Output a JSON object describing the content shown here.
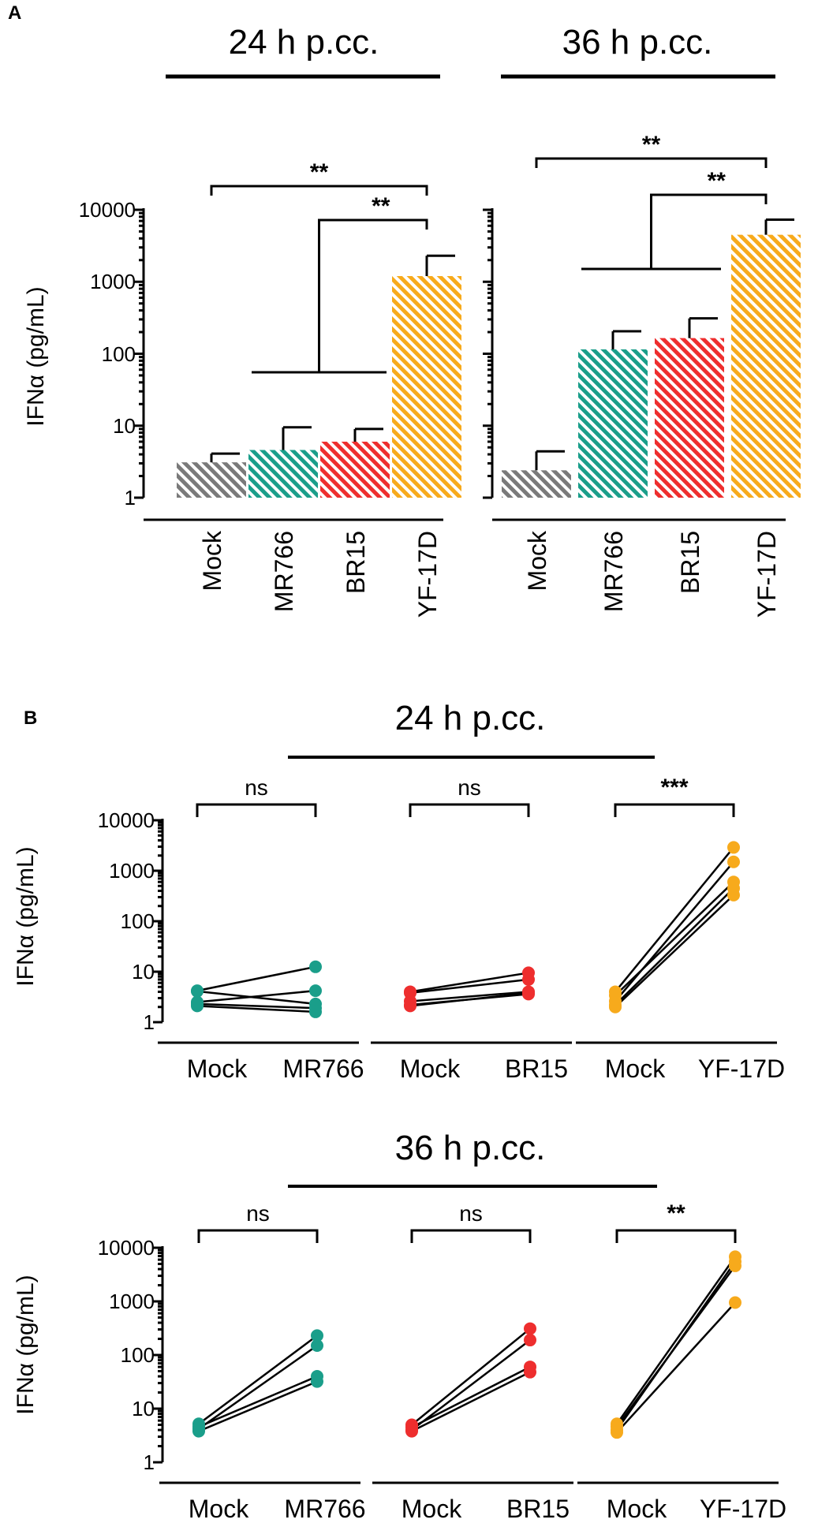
{
  "figure": {
    "panel_a_label": "A",
    "panel_b_label": "B",
    "y_axis_label": "IFNα (pg/mL)",
    "y_ticks": [
      "10000",
      "1000",
      "100",
      "10",
      "1"
    ]
  },
  "colors": {
    "Mock": "#7a7a7a",
    "MR766": "#1a9e8a",
    "BR15": "#ee2e2e",
    "YF-17D": "#f7aa1c"
  },
  "chart_data": [
    {
      "id": "A-24",
      "type": "bar",
      "scale": "log",
      "title": "24 h p.cc.",
      "ylabel": "IFNα (pg/mL)",
      "ylim": [
        1,
        10000
      ],
      "categories": [
        "Mock",
        "MR766",
        "BR15",
        "YF-17D"
      ],
      "values": [
        3.1,
        4.6,
        6.0,
        1200
      ],
      "error_upper": [
        4.1,
        9.5,
        9.0,
        2300
      ],
      "significance": [
        {
          "from": "Mock",
          "to": "YF-17D",
          "label": "**"
        },
        {
          "from": "MR766-BR15",
          "to": "YF-17D",
          "label": "**"
        }
      ]
    },
    {
      "id": "A-36",
      "type": "bar",
      "scale": "log",
      "title": "36 h p.cc.",
      "ylabel": "IFNα (pg/mL)",
      "ylim": [
        1,
        10000
      ],
      "categories": [
        "Mock",
        "MR766",
        "BR15",
        "YF-17D"
      ],
      "values": [
        2.4,
        115,
        165,
        4500
      ],
      "error_upper": [
        4.4,
        205,
        310,
        7300
      ],
      "significance": [
        {
          "from": "Mock",
          "to": "YF-17D",
          "label": "**"
        },
        {
          "from": "MR766-BR15",
          "to": "YF-17D",
          "label": "**"
        }
      ]
    },
    {
      "id": "B-24",
      "type": "scatter",
      "scale": "log",
      "title": "24 h p.cc.",
      "ylabel": "IFNα (pg/mL)",
      "ylim": [
        1,
        10000
      ],
      "pairs": [
        {
          "x": [
            "Mock",
            "MR766"
          ],
          "sig": "ns",
          "mock": [
            4.2,
            2.5,
            4.1,
            2.3,
            2.1
          ],
          "infected": [
            12.5,
            4.2,
            2.3,
            1.9,
            1.6
          ]
        },
        {
          "x": [
            "Mock",
            "BR15"
          ],
          "sig": "ns",
          "mock": [
            4.0,
            2.2,
            3.8,
            2.6,
            2.1
          ],
          "infected": [
            9.5,
            3.6,
            7.0,
            4.0,
            3.8
          ]
        },
        {
          "x": [
            "Mock",
            "YF-17D"
          ],
          "sig": "***",
          "mock": [
            4.0,
            2.6,
            3.4,
            2.2,
            2.0
          ],
          "infected": [
            2900,
            1500,
            600,
            450,
            330
          ]
        }
      ]
    },
    {
      "id": "B-36",
      "type": "scatter",
      "scale": "log",
      "title": "36 h p.cc.",
      "ylabel": "IFNα (pg/mL)",
      "ylim": [
        1,
        10000
      ],
      "pairs": [
        {
          "x": [
            "Mock",
            "MR766"
          ],
          "sig": "ns",
          "mock": [
            5.2,
            4.2,
            4.6,
            3.8
          ],
          "infected": [
            230,
            150,
            40,
            32
          ]
        },
        {
          "x": [
            "Mock",
            "BR15"
          ],
          "sig": "ns",
          "mock": [
            5.0,
            4.0,
            4.5,
            3.8
          ],
          "infected": [
            310,
            190,
            60,
            48
          ]
        },
        {
          "x": [
            "Mock",
            "YF-17D"
          ],
          "sig": "**",
          "mock": [
            5.2,
            4.0,
            4.6,
            3.6
          ],
          "infected": [
            6800,
            5500,
            4600,
            950
          ]
        }
      ]
    }
  ]
}
